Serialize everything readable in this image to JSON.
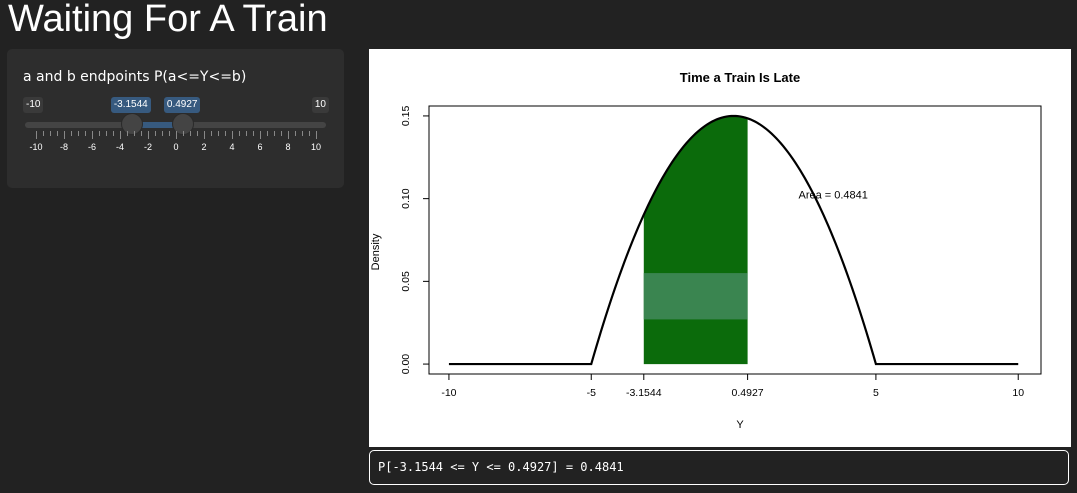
{
  "app": {
    "title": "Waiting For A Train"
  },
  "slider": {
    "label": "a and b endpoints P(a<=Y<=b)",
    "min": -10,
    "max": 10,
    "min_label": "-10",
    "max_label": "10",
    "a_value": -3.1544,
    "b_value": 0.4927,
    "a_label": "-3.1544",
    "b_label": "0.4927",
    "tick_labels": [
      "-10",
      "-8",
      "-6",
      "-4",
      "-2",
      "0",
      "2",
      "4",
      "6",
      "8",
      "10"
    ],
    "accent_color": "#375a7f"
  },
  "chart_data": {
    "type": "area",
    "title": "Time a Train Is Late",
    "xlabel": "Y",
    "ylabel": "Density",
    "xlim": [
      -10,
      10
    ],
    "ylim": [
      0,
      0.15
    ],
    "x_ticks": [
      -10,
      -5,
      5,
      10
    ],
    "x_tick_labels": [
      "-10",
      "-5",
      "5",
      "10"
    ],
    "y_ticks": [
      0,
      0.05,
      0.1,
      0.15
    ],
    "y_tick_labels": [
      "0.00",
      "0.05",
      "0.10",
      "0.15"
    ],
    "a": -3.1544,
    "b": 0.4927,
    "a_label": "-3.1544",
    "b_label": "0.4927",
    "density": {
      "support": [
        -5,
        5
      ],
      "formula": "0.15 * (1 - (y/5)^2) on [-5, 5], 0 elsewhere"
    },
    "area_label": "Area = 0.4841",
    "area_label_pos": [
      3.5,
      0.1
    ],
    "fill_color": "#0b6b0b",
    "band_color": "#3a8550",
    "band_range": [
      0.027,
      0.055
    ]
  },
  "output": {
    "text": "P[-3.1544 <= Y <= 0.4927] = 0.4841"
  }
}
